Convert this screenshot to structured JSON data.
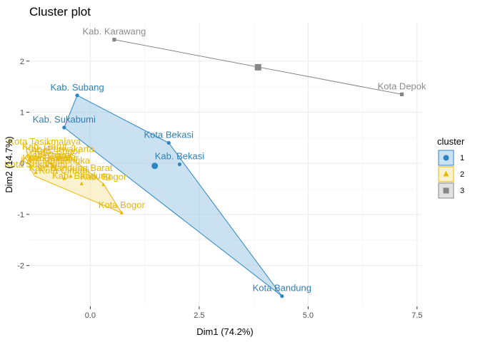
{
  "chart_data": {
    "type": "scatter",
    "title": "Cluster plot",
    "xlabel": "Dim1 (74.2%)",
    "ylabel": "Dim2 (14.7%)",
    "xlim": [
      -1.4,
      7.6
    ],
    "ylim": [
      -2.8,
      2.75
    ],
    "xticks": [
      {
        "v": 0,
        "label": "0.0"
      },
      {
        "v": 2.5,
        "label": "2.5"
      },
      {
        "v": 5,
        "label": "5.0"
      },
      {
        "v": 7.5,
        "label": "7.5"
      }
    ],
    "yticks": [
      {
        "v": -2,
        "label": "-2"
      },
      {
        "v": -1,
        "label": "-1"
      },
      {
        "v": 0,
        "label": "0"
      },
      {
        "v": 1,
        "label": "1"
      },
      {
        "v": 2,
        "label": "2"
      }
    ],
    "grid": true,
    "legend": {
      "title": "cluster",
      "placement": "right"
    },
    "clusters": [
      {
        "name": "1",
        "color": "#2E86C1",
        "labelColor": "#2E7FB8",
        "fill": "#9FC8E8",
        "shape": "circle",
        "centroid": {
          "x": 1.48,
          "y": -0.05
        },
        "hull": [
          [
            -0.3,
            1.33
          ],
          [
            1.8,
            0.4
          ],
          [
            4.4,
            -2.6
          ],
          [
            -0.6,
            0.7
          ]
        ],
        "points": [
          {
            "label": "Kab. Subang",
            "x": -0.3,
            "y": 1.33
          },
          {
            "label": "Kab. Sukabumi",
            "x": -0.6,
            "y": 0.7
          },
          {
            "label": "Kota Bekasi",
            "x": 1.8,
            "y": 0.4
          },
          {
            "label": "Kab. Bekasi",
            "x": 2.05,
            "y": -0.02
          },
          {
            "label": "Kota Bandung",
            "x": 4.4,
            "y": -2.6
          }
        ]
      },
      {
        "name": "2",
        "color": "#E7B800",
        "labelColor": "#E6B800",
        "fill": "#F5E6A8",
        "shape": "triangle",
        "centroid": null,
        "hull": [
          [
            -1.35,
            0.25
          ],
          [
            -0.5,
            0.15
          ],
          [
            0.3,
            -0.4
          ],
          [
            0.72,
            -0.97
          ],
          [
            -1.28,
            -0.25
          ],
          [
            -1.4,
            -0.05
          ]
        ],
        "points": [
          {
            "label": "Kota Tasikmalaya",
            "x": -1.05,
            "y": 0.27
          },
          {
            "label": "Kab. Garut",
            "x": -1.05,
            "y": 0.17
          },
          {
            "label": "Kab. Purwakarta",
            "x": -0.7,
            "y": 0.12
          },
          {
            "label": "Kab. Bogor",
            "x": -0.75,
            "y": 0.08
          },
          {
            "label": "Kab. Ciamis",
            "x": -0.9,
            "y": 0.0
          },
          {
            "label": "Kota Banjar",
            "x": -1.0,
            "y": -0.05
          },
          {
            "label": "Kab. Cianjur",
            "x": -0.85,
            "y": -0.05
          },
          {
            "label": "Kab. Majalengka",
            "x": -0.8,
            "y": -0.1
          },
          {
            "label": "Kota Sukabumi",
            "x": -1.25,
            "y": -0.18
          },
          {
            "label": "Kab. Bandung Barat",
            "x": -0.45,
            "y": -0.25
          },
          {
            "label": "Kota Cimahi",
            "x": -0.6,
            "y": -0.3
          },
          {
            "label": "Kab. Bandung",
            "x": -0.2,
            "y": -0.4
          },
          {
            "label": "Kab. Bogor",
            "x": 0.3,
            "y": -0.42
          },
          {
            "label": "Kota Bogor",
            "x": 0.72,
            "y": -0.97
          }
        ]
      },
      {
        "name": "3",
        "color": "#868686",
        "labelColor": "#8C8C8C",
        "fill": "#C8C8C8",
        "shape": "square",
        "centroid": {
          "x": 3.85,
          "y": 1.88
        },
        "hull": [
          [
            0.55,
            2.42
          ],
          [
            7.15,
            1.35
          ]
        ],
        "points": [
          {
            "label": "Kab. Karawang",
            "x": 0.55,
            "y": 2.42
          },
          {
            "label": "Kota Depok",
            "x": 7.15,
            "y": 1.35
          }
        ]
      }
    ]
  }
}
